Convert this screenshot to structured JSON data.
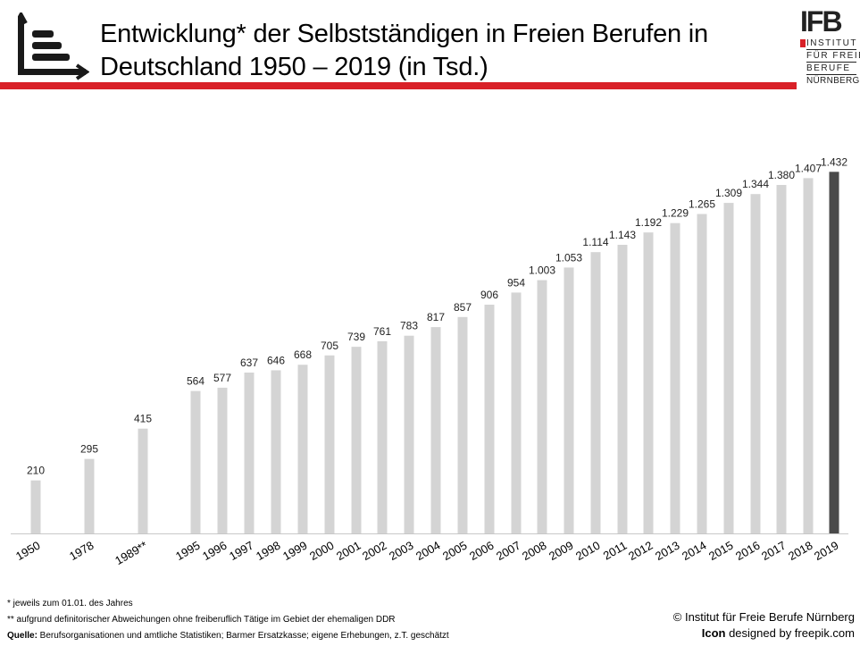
{
  "header": {
    "title_line1": "Entwicklung* der Selbstständigen in Freien Berufen in",
    "title_line2": "Deutschland 1950 – 2019 (in Tsd.)",
    "icon": "bar-chart-icon",
    "accent_color": "#d92128"
  },
  "logo": {
    "mark": "IFB",
    "line1": "INSTITUT",
    "line2": "FÜR FREIE",
    "line3": "BERUFE",
    "line4": "NÜRNBERG"
  },
  "chart_data": {
    "type": "bar",
    "title": "Entwicklung* der Selbstständigen in Freien Berufen in Deutschland 1950 – 2019 (in Tsd.)",
    "xlabel": "",
    "ylabel": "",
    "ylim": [
      0,
      1500
    ],
    "grid": false,
    "legend": "none",
    "bar_color": "#d4d4d4",
    "highlight_color": "#4a4a4a",
    "highlight_category": "2019",
    "categories": [
      "1950",
      "1978",
      "1989**",
      "1995",
      "1996",
      "1997",
      "1998",
      "1999",
      "2000",
      "2001",
      "2002",
      "2003",
      "2004",
      "2005",
      "2006",
      "2007",
      "2008",
      "2009",
      "2010",
      "2011",
      "2012",
      "2013",
      "2014",
      "2015",
      "2016",
      "2017",
      "2018",
      "2019"
    ],
    "values": [
      210,
      295,
      415,
      564,
      577,
      637,
      646,
      668,
      705,
      739,
      761,
      783,
      817,
      857,
      906,
      954,
      1003,
      1053,
      1114,
      1143,
      1192,
      1229,
      1265,
      1309,
      1344,
      1380,
      1407,
      1432
    ],
    "data_labels": [
      "210",
      "295",
      "415",
      "564",
      "577",
      "637",
      "646",
      "668",
      "705",
      "739",
      "761",
      "783",
      "817",
      "857",
      "906",
      "954",
      "1.003",
      "1.053",
      "1.114",
      "1.143",
      "1.192",
      "1.229",
      "1.265",
      "1.309",
      "1.344",
      "1.380",
      "1.407",
      "1.432"
    ]
  },
  "footer": {
    "note1": "* jeweils zum 01.01. des Jahres",
    "note2": "** aufgrund definitorischer Abweichungen ohne freiberuflich Tätige im Gebiet der ehemaligen DDR",
    "source_label": "Quelle:",
    "source_text": " Berufsorganisationen und amtliche Statistiken; Barmer Ersatzkasse; eigene Erhebungen, z.T. geschätzt",
    "copyright": "© Institut für Freie Berufe Nürnberg",
    "icon_label": "Icon",
    "icon_credit": " designed by freepik.com"
  }
}
